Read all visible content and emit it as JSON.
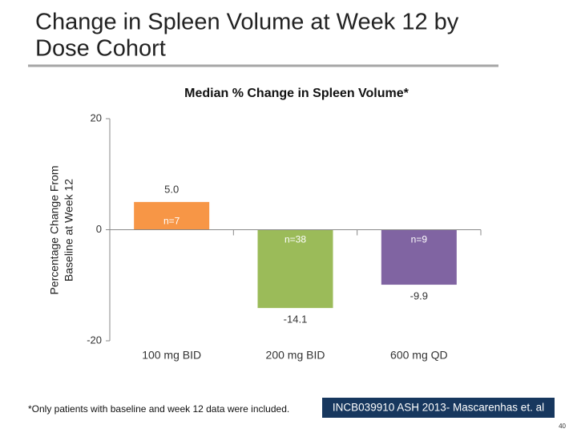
{
  "slide": {
    "title_lines": [
      "Change in Spleen Volume at Week 12 by",
      "Dose Cohort"
    ],
    "footnote": "*Only patients with baseline and week 12 data were included.",
    "source": "INCB039910 ASH 2013- Mascarenhas et. al",
    "page_number": "40"
  },
  "chart_data": {
    "type": "bar",
    "title": "Median % Change in Spleen Volume*",
    "y_label_lines": [
      "Percentage Change From",
      "Baseline at Week 12"
    ],
    "categories": [
      "100 mg BID",
      "200 mg BID",
      "600 mg QD"
    ],
    "values": [
      5.0,
      -14.1,
      -9.9
    ],
    "value_labels": [
      "5.0",
      "-14.1",
      "-9.9"
    ],
    "n_labels": [
      "n=7",
      "n=38",
      "n=9"
    ],
    "colors": [
      "#f79646",
      "#9bbb59",
      "#8064a2"
    ],
    "ylim": [
      -20,
      20
    ],
    "yticks": [
      -20,
      0,
      20
    ],
    "grid": false
  }
}
